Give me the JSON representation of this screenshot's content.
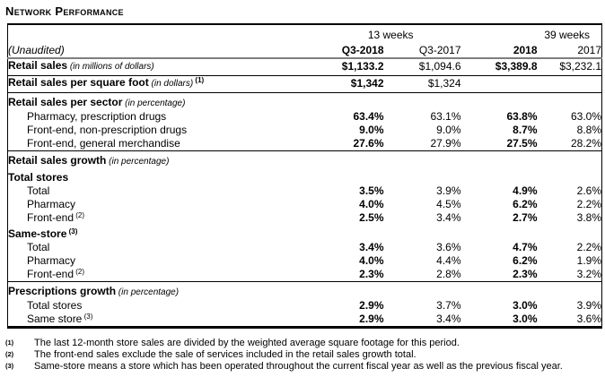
{
  "page": {
    "title": "Network Performance"
  },
  "table": {
    "period_groups": [
      {
        "label": "13 weeks",
        "span": 2
      },
      {
        "label": "39 weeks",
        "span": 2
      }
    ],
    "columns": [
      {
        "label": "(Unaudited)"
      },
      {
        "label": "Q3-2018"
      },
      {
        "label": "Q3-2017"
      },
      {
        "label": "2018"
      },
      {
        "label": "2017"
      }
    ],
    "rows": [
      {
        "label": "Retail sales",
        "note": "(in millions of dollars)",
        "sup": "",
        "indent": false,
        "bold": true,
        "first_section": true,
        "rule_below": true,
        "values": [
          "$1,133.2",
          "$1,094.6",
          "$3,389.8",
          "$3,232.1"
        ]
      },
      {
        "label": "Retail sales per square foot",
        "note": "(in dollars)",
        "sup": "(1)",
        "indent": false,
        "bold": true,
        "first_section": true,
        "rule_below": true,
        "values": [
          "$1,342",
          "$1,324",
          "",
          ""
        ]
      },
      {
        "label": "Retail sales per sector",
        "note": "(in percentage)",
        "sup": "",
        "indent": false,
        "bold": true,
        "section": true,
        "rule_below": false,
        "values": [
          "",
          "",
          "",
          ""
        ]
      },
      {
        "label": "Pharmacy, prescription drugs",
        "note": "",
        "sup": "",
        "indent": true,
        "bold": false,
        "rule_below": false,
        "values": [
          "63.4%",
          "63.1%",
          "63.8%",
          "63.0%"
        ]
      },
      {
        "label": "Front-end, non-prescription drugs",
        "note": "",
        "sup": "",
        "indent": true,
        "bold": false,
        "rule_below": false,
        "values": [
          "9.0%",
          "9.0%",
          "8.7%",
          "8.8%"
        ]
      },
      {
        "label": "Front-end, general merchandise",
        "note": "",
        "sup": "",
        "indent": true,
        "bold": false,
        "rule_below": true,
        "values": [
          "27.6%",
          "27.9%",
          "27.5%",
          "28.2%"
        ]
      },
      {
        "label": "Retail sales growth",
        "note": "(in percentage)",
        "sup": "",
        "indent": false,
        "bold": true,
        "section": true,
        "rule_below": false,
        "values": [
          "",
          "",
          "",
          ""
        ]
      },
      {
        "label": "Total stores",
        "note": "",
        "sup": "",
        "indent": false,
        "bold": true,
        "section": true,
        "rule_below": false,
        "values": [
          "",
          "",
          "",
          ""
        ]
      },
      {
        "label": "Total",
        "note": "",
        "sup": "",
        "indent": true,
        "bold": false,
        "rule_below": false,
        "values": [
          "3.5%",
          "3.9%",
          "4.9%",
          "2.6%"
        ]
      },
      {
        "label": "Pharmacy",
        "note": "",
        "sup": "",
        "indent": true,
        "bold": false,
        "rule_below": false,
        "values": [
          "4.0%",
          "4.5%",
          "6.2%",
          "2.2%"
        ]
      },
      {
        "label": "Front-end",
        "note": "",
        "sup": "(2)",
        "indent": true,
        "bold": false,
        "rule_below": false,
        "values": [
          "2.5%",
          "3.4%",
          "2.7%",
          "3.8%"
        ]
      },
      {
        "label": "Same-store",
        "note": "",
        "sup": "(3)",
        "indent": false,
        "bold": true,
        "section": true,
        "rule_below": false,
        "values": [
          "",
          "",
          "",
          ""
        ]
      },
      {
        "label": "Total",
        "note": "",
        "sup": "",
        "indent": true,
        "bold": false,
        "rule_below": false,
        "values": [
          "3.4%",
          "3.6%",
          "4.7%",
          "2.2%"
        ]
      },
      {
        "label": "Pharmacy",
        "note": "",
        "sup": "",
        "indent": true,
        "bold": false,
        "rule_below": false,
        "values": [
          "4.0%",
          "4.4%",
          "6.2%",
          "1.9%"
        ]
      },
      {
        "label": "Front-end",
        "note": "",
        "sup": "(2)",
        "indent": true,
        "bold": false,
        "rule_below": true,
        "values": [
          "2.3%",
          "2.8%",
          "2.3%",
          "3.2%"
        ]
      },
      {
        "label": "Prescriptions growth",
        "note": "(in percentage)",
        "sup": "",
        "indent": false,
        "bold": true,
        "section": true,
        "rule_below": false,
        "values": [
          "",
          "",
          "",
          ""
        ]
      },
      {
        "label": "Total stores",
        "note": "",
        "sup": "",
        "indent": true,
        "bold": false,
        "rule_below": false,
        "values": [
          "2.9%",
          "3.7%",
          "3.0%",
          "3.9%"
        ]
      },
      {
        "label": "Same store",
        "note": "",
        "sup": "(3)",
        "indent": true,
        "bold": false,
        "rule_below": false,
        "values": [
          "2.9%",
          "3.4%",
          "3.0%",
          "3.6%"
        ]
      }
    ]
  },
  "footnotes": [
    {
      "marker": "(1)",
      "text": "The last 12-month store sales are divided by the weighted average square footage for this period."
    },
    {
      "marker": "(2)",
      "text": "The front-end sales exclude the sale of services included in the retail sales growth total."
    },
    {
      "marker": "(3)",
      "text": "Same-store means a store which has been operated throughout the current fiscal year as well as the previous fiscal year."
    }
  ]
}
